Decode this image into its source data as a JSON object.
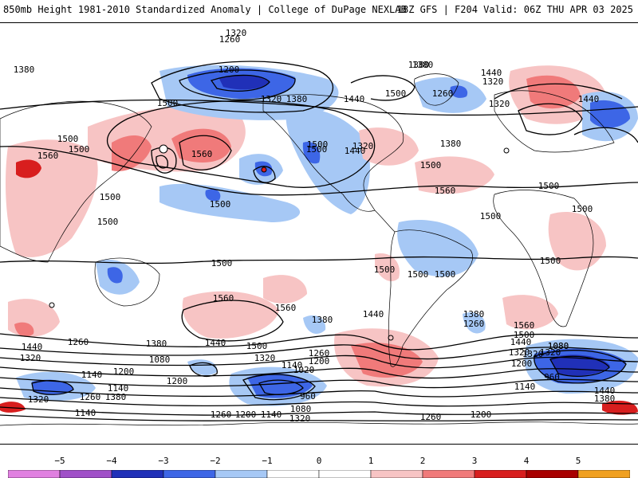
{
  "header": {
    "left_title": "850mb Height 1981-2010 Standardized Anomaly | College of DuPage NEXLAB",
    "right_title": "18Z GFS | F204 Valid: 06Z THU APR 03 2025"
  },
  "colorbar": {
    "ticks": [
      "−5",
      "−4",
      "−3",
      "−2",
      "−1",
      "0",
      "1",
      "2",
      "3",
      "4",
      "5"
    ],
    "colors": [
      "#e080e0",
      "#a050c8",
      "#2030b8",
      "#3d66e6",
      "#a6c8f5",
      "#ffffff",
      "#f7c4c4",
      "#f07a7a",
      "#d81e1e",
      "#a80000",
      "#f0a020"
    ]
  },
  "contour_labels": [
    "1320",
    "1260",
    "1380",
    "1200",
    "1320",
    "1260",
    "1320",
    "1380",
    "1440",
    "1500",
    "1380",
    "1440",
    "1320",
    "1500",
    "1560",
    "1500",
    "1500",
    "1500",
    "1440",
    "1320",
    "1500",
    "1380",
    "1560",
    "1500",
    "1380",
    "1500",
    "1440",
    "1560",
    "1500",
    "1500",
    "1500",
    "1500",
    "1500",
    "1500",
    "1500",
    "1500",
    "1500",
    "1500",
    "1560",
    "1560",
    "1380",
    "1440",
    "1380",
    "1260",
    "1560",
    "1500",
    "1440",
    "1320",
    "1440",
    "1320",
    "1260",
    "1380",
    "1440",
    "1500",
    "1320",
    "1260",
    "1200",
    "1140",
    "1020",
    "1200",
    "1080",
    "1140",
    "1200",
    "1140",
    "1260",
    "1380",
    "1320",
    "960",
    "1320",
    "1140",
    "1200",
    "1080",
    "1320",
    "1260",
    "1200",
    "1140",
    "1080",
    "1320",
    "1260",
    "1200",
    "1140",
    "960",
    "1440",
    "1380",
    "1080"
  ]
}
